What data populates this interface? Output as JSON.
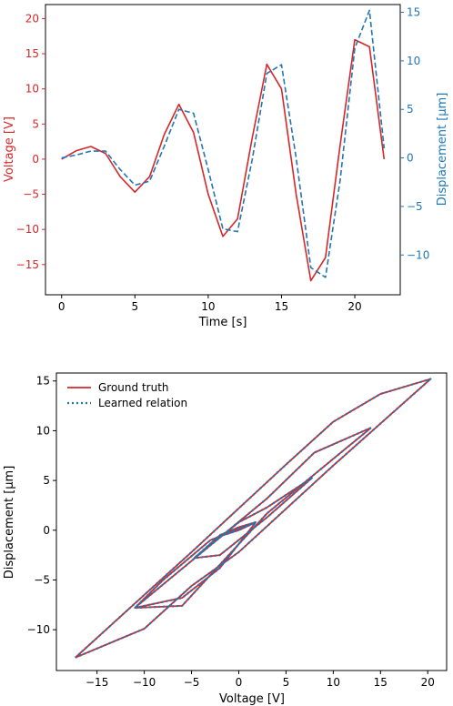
{
  "colors": {
    "red": "#d62728",
    "blue": "#1f77b4"
  },
  "chart_data": [
    {
      "type": "line",
      "xlabel": "Time [s]",
      "ylabel_left": "Voltage [V]",
      "ylabel_right": "Displacement [μm]",
      "xlim": [
        -1.1,
        23.1
      ],
      "ylim_left": [
        -19.3,
        22.0
      ],
      "ylim_right": [
        -14.1,
        15.8
      ],
      "x_ticks": [
        0,
        5,
        10,
        15,
        20
      ],
      "y_ticks_left": [
        -15,
        -10,
        -5,
        0,
        5,
        10,
        15,
        20
      ],
      "y_ticks_right": [
        -10,
        -5,
        0,
        5,
        10,
        15
      ],
      "series": [
        {
          "axis": "left",
          "style": "solid",
          "color": "#d62728",
          "x": [
            0,
            1,
            2,
            3,
            4,
            5,
            6,
            7,
            8,
            9,
            10,
            11,
            12,
            13,
            14,
            15,
            16,
            17,
            18,
            19,
            20,
            21,
            22
          ],
          "values": [
            0,
            1.2,
            1.8,
            0.8,
            -2.5,
            -4.7,
            -2.5,
            3.5,
            7.8,
            3.8,
            -5.0,
            -11.0,
            -8.5,
            3.0,
            13.5,
            10.0,
            -5.0,
            -17.3,
            -14.0,
            2.0,
            17.0,
            16.0,
            0
          ]
        },
        {
          "axis": "right",
          "style": "dashed",
          "color": "#1f77b4",
          "x": [
            0,
            1,
            2,
            3,
            4,
            5,
            6,
            7,
            8,
            9,
            10,
            11,
            12,
            13,
            14,
            15,
            16,
            17,
            18,
            19,
            20,
            21,
            22
          ],
          "values": [
            0,
            0.3,
            0.7,
            0.7,
            -1.2,
            -2.8,
            -2.4,
            1.2,
            5.0,
            4.6,
            -1.2,
            -7.3,
            -7.6,
            -0.2,
            8.7,
            9.6,
            0,
            -11.3,
            -12.3,
            -2.3,
            11.3,
            15.2,
            1.0
          ]
        }
      ]
    },
    {
      "type": "line",
      "xlabel": "Voltage [V]",
      "ylabel": "Displacement [μm]",
      "xlim": [
        -19.3,
        22.0
      ],
      "ylim": [
        -14.1,
        15.8
      ],
      "x_ticks": [
        -15,
        -10,
        -5,
        0,
        5,
        10,
        15,
        20
      ],
      "y_ticks": [
        -10,
        -5,
        0,
        5,
        10,
        15
      ],
      "legend_position": "top-left",
      "series": [
        {
          "name": "Ground truth",
          "style": "solid",
          "color": "#d62728",
          "x": [
            -17.3,
            -10,
            -5,
            0,
            5,
            10,
            15,
            20.3,
            10,
            0,
            -5,
            -10,
            -17.3
          ],
          "y": [
            -12.8,
            -6.5,
            -2.2,
            2.2,
            6.6,
            10.9,
            13.7,
            15.2,
            6.5,
            -2.2,
            -5.6,
            -9.9,
            -12.8
          ],
          "loops": [
            {
              "x": [
                1.8,
                0,
                -2,
                -4.7,
                -2,
                0,
                1.8
              ],
              "y": [
                0.8,
                0.3,
                -0.5,
                -2.8,
                -0.6,
                0,
                0.8
              ]
            },
            {
              "x": [
                7.8,
                3,
                0,
                -4.7,
                -2,
                3,
                7.8
              ],
              "y": [
                5.3,
                2.3,
                0.8,
                -2.8,
                -2.5,
                1.3,
                5.3
              ]
            },
            {
              "x": [
                -11,
                -6,
                -2,
                1.8,
                -3,
                -8,
                -11
              ],
              "y": [
                -7.8,
                -6.8,
                -3.8,
                0.8,
                -1.0,
                -5.0,
                -7.8
              ]
            },
            {
              "x": [
                14,
                8,
                3,
                -11,
                -6,
                3,
                14
              ],
              "y": [
                10.3,
                7.8,
                3.2,
                -7.8,
                -7.6,
                1.7,
                10.3
              ]
            }
          ]
        },
        {
          "name": "Learned relation",
          "style": "dotted",
          "color": "#1f77b4",
          "x": [
            -17.3,
            -10,
            -5,
            0,
            5,
            10,
            15,
            20.3,
            10,
            0,
            -5,
            -10,
            -17.3
          ],
          "y": [
            -12.8,
            -6.5,
            -2.2,
            2.2,
            6.6,
            10.9,
            13.7,
            15.2,
            6.5,
            -2.2,
            -5.6,
            -9.9,
            -12.8
          ],
          "loops": [
            {
              "x": [
                1.8,
                0,
                -2,
                -4.7,
                -2,
                0,
                1.8
              ],
              "y": [
                0.8,
                0.3,
                -0.5,
                -2.8,
                -0.6,
                0,
                0.8
              ]
            },
            {
              "x": [
                7.8,
                3,
                0,
                -4.7,
                -2,
                3,
                7.8
              ],
              "y": [
                5.3,
                2.3,
                0.8,
                -2.8,
                -2.5,
                1.3,
                5.3
              ]
            },
            {
              "x": [
                -11,
                -6,
                -2,
                1.8,
                -3,
                -8,
                -11
              ],
              "y": [
                -7.8,
                -6.8,
                -3.8,
                0.8,
                -1.0,
                -5.0,
                -7.8
              ]
            },
            {
              "x": [
                14,
                8,
                3,
                -11,
                -6,
                3,
                14
              ],
              "y": [
                10.3,
                7.8,
                3.2,
                -7.8,
                -7.6,
                1.7,
                10.3
              ]
            }
          ]
        }
      ]
    }
  ]
}
